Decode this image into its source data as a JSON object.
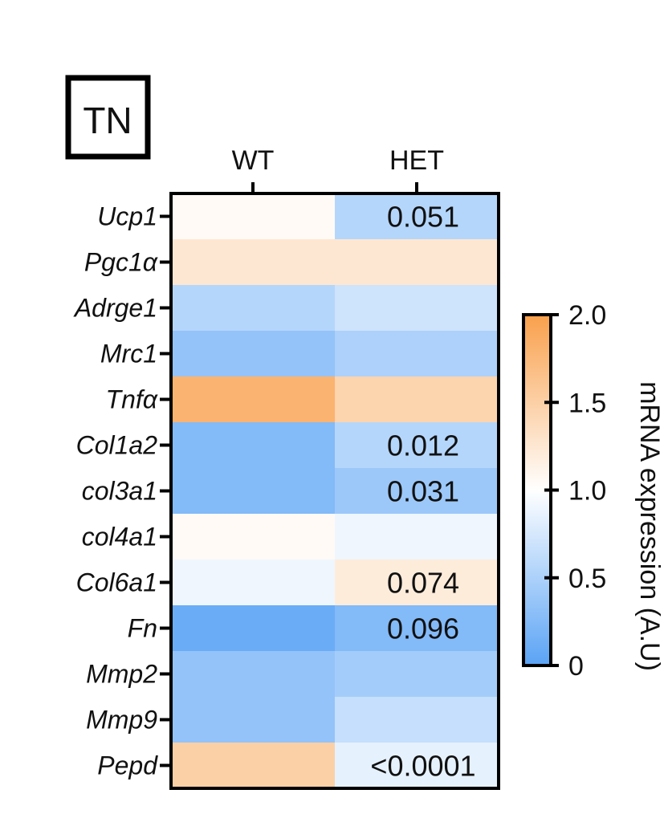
{
  "panel_label": "TN",
  "chart_data": {
    "type": "heatmap",
    "columns": [
      "WT",
      "HET"
    ],
    "rows": [
      {
        "label": "Ucp1",
        "values": [
          1.05,
          0.55
        ],
        "annotation": [
          "",
          "0.051"
        ]
      },
      {
        "label": "Pgc1α",
        "values": [
          1.25,
          1.25
        ],
        "annotation": [
          "",
          ""
        ]
      },
      {
        "label": "Adrge1",
        "values": [
          0.55,
          0.7
        ],
        "annotation": [
          "",
          ""
        ]
      },
      {
        "label": "Mrc1",
        "values": [
          0.35,
          0.5
        ],
        "annotation": [
          "",
          ""
        ]
      },
      {
        "label": "Tnfα",
        "values": [
          1.8,
          1.45
        ],
        "annotation": [
          "",
          ""
        ]
      },
      {
        "label": "Col1a2",
        "values": [
          0.25,
          0.55
        ],
        "annotation": [
          "",
          "0.012"
        ]
      },
      {
        "label": "col3a1",
        "values": [
          0.25,
          0.4
        ],
        "annotation": [
          "",
          "0.031"
        ]
      },
      {
        "label": "col4a1",
        "values": [
          1.05,
          0.9
        ],
        "annotation": [
          "",
          ""
        ]
      },
      {
        "label": "Col6a1",
        "values": [
          0.9,
          1.2
        ],
        "annotation": [
          "",
          "0.074"
        ]
      },
      {
        "label": "Fn",
        "values": [
          0.1,
          0.25
        ],
        "annotation": [
          "",
          "0.096"
        ]
      },
      {
        "label": "Mmp2",
        "values": [
          0.35,
          0.45
        ],
        "annotation": [
          "",
          ""
        ]
      },
      {
        "label": "Mmp9",
        "values": [
          0.35,
          0.65
        ],
        "annotation": [
          "",
          ""
        ]
      },
      {
        "label": "Pepd",
        "values": [
          1.5,
          0.85
        ],
        "annotation": [
          "",
          "<0.0001"
        ]
      }
    ],
    "colorbar": {
      "label": "mRNA expression (A.U)",
      "min": 0,
      "max": 2,
      "ticks": [
        "0",
        "0.5",
        "1.0",
        "1.5",
        "2.0"
      ],
      "low_color": "#5aa3f5",
      "mid_color": "#ffffff",
      "high_color": "#f9a04c"
    }
  }
}
